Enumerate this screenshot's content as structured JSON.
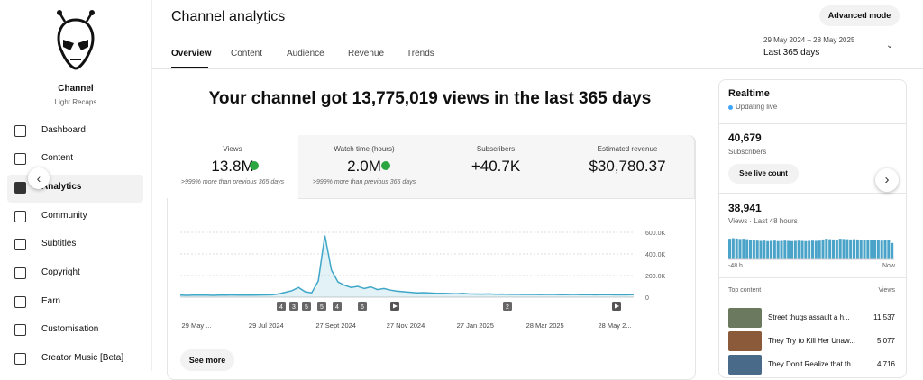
{
  "sidebar": {
    "channel_label": "Channel",
    "channel_name": "Light Recaps",
    "nav": [
      "Dashboard",
      "Content",
      "Analytics",
      "Community",
      "Subtitles",
      "Copyright",
      "Earn",
      "Customisation",
      "Creator Music [Beta]"
    ]
  },
  "header": {
    "title": "Channel analytics",
    "button": "Advanced mode",
    "tabs": [
      "Overview",
      "Content",
      "Audience",
      "Revenue",
      "Trends"
    ],
    "date_range": "29 May 2024 – 28 May 2025",
    "period": "Last 365 days"
  },
  "headline": "Your channel got 13,775,019 views in the last 365 days",
  "metrics": [
    {
      "label": "Views",
      "value": "13.8M",
      "note": ">999% more than previous 365 days"
    },
    {
      "label": "Watch time (hours)",
      "value": "2.0M",
      "note": ">999% more than previous 365 days"
    },
    {
      "label": "Subscribers",
      "value": "+40.7K"
    },
    {
      "label": "Estimated revenue",
      "value": "$30,780.37"
    }
  ],
  "chart_data": {
    "type": "line",
    "color": "#3ea6c7",
    "values": [
      18000,
      17000,
      18000,
      19000,
      18000,
      17000,
      18000,
      19000,
      20000,
      19000,
      18000,
      19000,
      20000,
      21000,
      22000,
      30000,
      45000,
      60000,
      90000,
      50000,
      40000,
      150000,
      570000,
      250000,
      140000,
      110000,
      90000,
      100000,
      80000,
      95000,
      70000,
      80000,
      65000,
      55000,
      50000,
      45000,
      40000,
      42000,
      38000,
      35000,
      36000,
      33000,
      32000,
      34000,
      30000,
      29000,
      28000,
      30000,
      27000,
      28000,
      26000,
      27000,
      25000,
      26000,
      25000,
      24000,
      26000,
      25000,
      23000,
      24000,
      25000,
      23000,
      24000,
      22000,
      23000,
      24000,
      22000,
      23000,
      22000,
      24000
    ],
    "ylim": [
      0,
      600000
    ],
    "yticks": [
      0,
      {
        "value": 200000,
        "label": "200.0K"
      },
      {
        "value": 400000,
        "label": "400.0K"
      },
      {
        "value": 600000,
        "label": "600.0K"
      }
    ],
    "x_labels": [
      "29 May ...",
      "29 Jul 2024",
      "27 Sept 2024",
      "27 Nov 2024",
      "27 Jan 2025",
      "28 Mar 2025",
      "28 May 2..."
    ],
    "markers": [
      "4",
      "3",
      "5",
      "5",
      "4",
      "6",
      "2"
    ],
    "grid": true
  },
  "see_more": "See more",
  "realtime": {
    "title": "Realtime",
    "status": "Updating live",
    "subscribers": "40,679",
    "subscribers_label": "Subscribers",
    "button": "See live count",
    "views": "38,941",
    "views_label": "Views · Last 48 hours",
    "bars": {
      "values": [
        880,
        900,
        890,
        870,
        880,
        860,
        840,
        820,
        800,
        790,
        800,
        780,
        790,
        800,
        780,
        790,
        800,
        790,
        780,
        790,
        800,
        790,
        780,
        790,
        800,
        790,
        800,
        850,
        880,
        860,
        850,
        840,
        880,
        870,
        860,
        850,
        860,
        850,
        840,
        830,
        840,
        820,
        830,
        840,
        800,
        820,
        840,
        700
      ],
      "ylim": [
        0,
        1000
      ],
      "color": "#4aa3c8"
    },
    "axis_start": "-48 h",
    "axis_end": "Now",
    "top_content_label": "Top content",
    "views_column": "Views",
    "top_content": [
      {
        "title": "Street thugs assault a h...",
        "views": "11,537"
      },
      {
        "title": "They Try to Kill Her Unaw...",
        "views": "5,077"
      },
      {
        "title": "They Don't Realize that th...",
        "views": "4,716"
      }
    ]
  }
}
